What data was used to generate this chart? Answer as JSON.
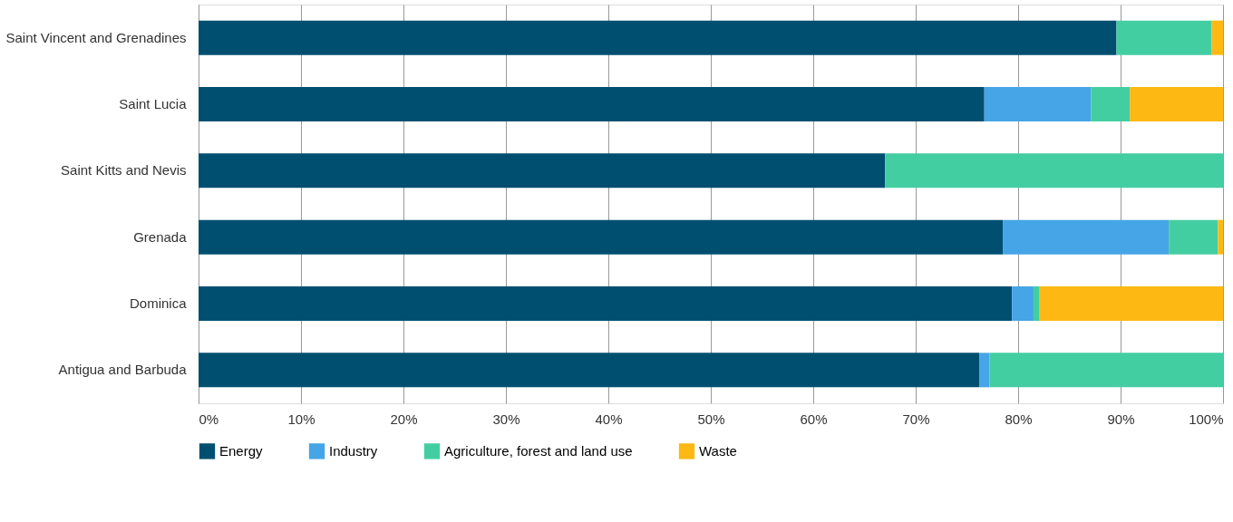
{
  "chart_data": {
    "type": "bar",
    "orientation": "horizontal",
    "stacked": true,
    "categories": [
      "Saint Vincent and Grenadines",
      "Saint Lucia",
      "Saint Kitts and Nevis",
      "Grenada",
      "Dominica",
      "Antigua and Barbuda"
    ],
    "series": [
      {
        "name": "Energy",
        "color": "#004f71",
        "values": [
          89.6,
          76.7,
          67.0,
          78.5,
          79.4,
          76.2
        ]
      },
      {
        "name": "Industry",
        "color": "#45a5e6",
        "values": [
          0,
          10.4,
          0,
          16.2,
          2.1,
          1.0
        ]
      },
      {
        "name": "Agriculture, forest and land use",
        "color": "#43cea2",
        "values": [
          9.3,
          3.8,
          33.0,
          4.8,
          0.6,
          22.8
        ]
      },
      {
        "name": "Waste",
        "color": "#fdb813",
        "values": [
          1.1,
          9.1,
          0,
          0.5,
          17.9,
          0
        ]
      }
    ],
    "xlim": [
      0,
      100
    ],
    "xticks": [
      {
        "value": 0,
        "label": "0%"
      },
      {
        "value": 10,
        "label": "10%"
      },
      {
        "value": 20,
        "label": "20%"
      },
      {
        "value": 30,
        "label": "30%"
      },
      {
        "value": 40,
        "label": "40%"
      },
      {
        "value": 50,
        "label": "50%"
      },
      {
        "value": 60,
        "label": "60%"
      },
      {
        "value": 70,
        "label": "70%"
      },
      {
        "value": 80,
        "label": "80%"
      },
      {
        "value": 90,
        "label": "90%"
      },
      {
        "value": 100,
        "label": "100%"
      }
    ],
    "grid": "x",
    "legend": "bottom"
  }
}
